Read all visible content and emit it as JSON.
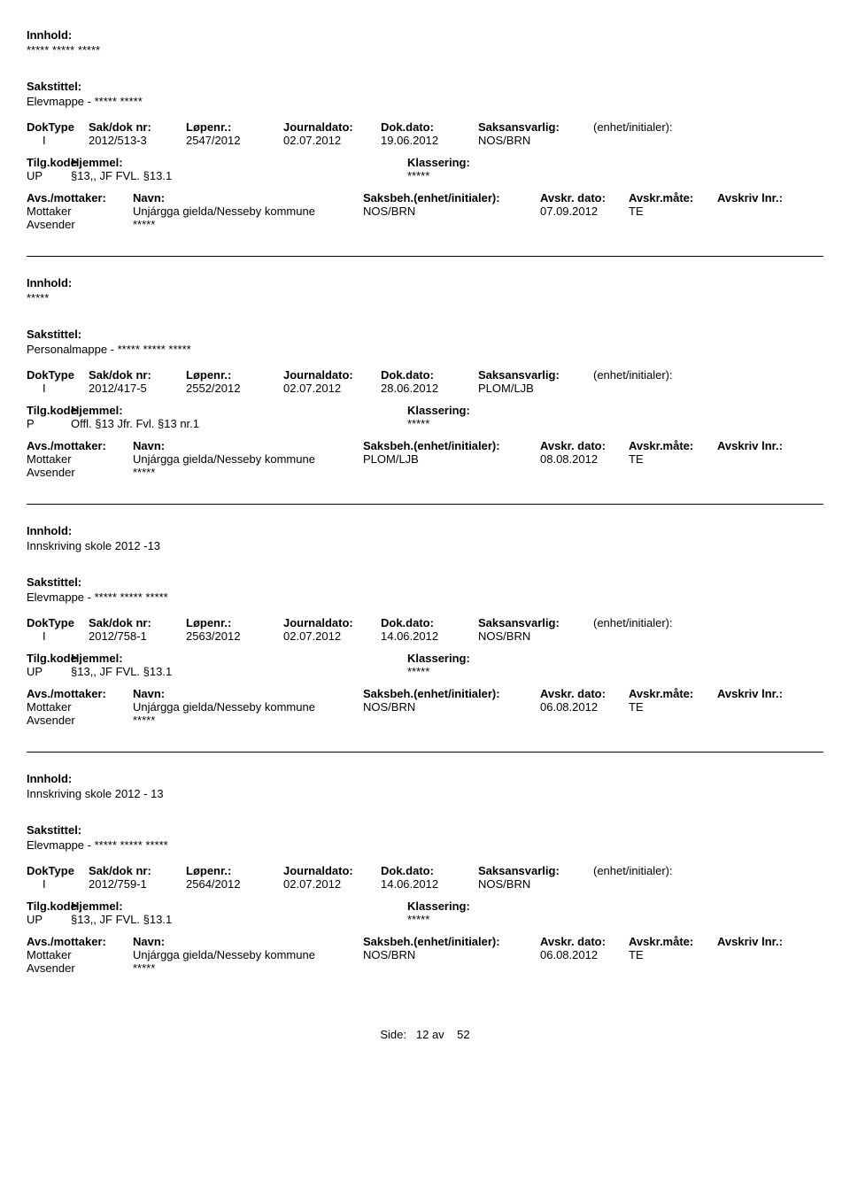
{
  "labels": {
    "innhold": "Innhold:",
    "sakstittel": "Sakstittel:",
    "doktype": "DokType",
    "saknr": "Sak/dok nr:",
    "lopenr": "Løpenr.:",
    "journaldato": "Journaldato:",
    "dokdato": "Dok.dato:",
    "saksansvarlig": "Saksansvarlig:",
    "enhet": "(enhet/initialer):",
    "tilgkode": "Tilg.kode",
    "hjemmel": "Hjemmel:",
    "klassering": "Klassering:",
    "avsmottaker": "Avs./mottaker:",
    "navn": "Navn:",
    "saksbeh": "Saksbeh.(enhet/initialer):",
    "avskrdato": "Avskr. dato:",
    "avskrmate": "Avskr.måte:",
    "avskrivlnr": "Avskriv lnr.:",
    "mottaker": "Mottaker",
    "avsender": "Avsender"
  },
  "records": [
    {
      "innhold": "***** ***** *****",
      "sakstittel": "Elevmappe - ***** *****",
      "doktype": "I",
      "saknr": "2012/513-3",
      "lopenr": "2547/2012",
      "journaldato": "02.07.2012",
      "dokdato": "19.06.2012",
      "saksansvarlig": "NOS/BRN",
      "enhet": "",
      "tilgkode": "UP",
      "hjemmel": "§13,, JF FVL. §13.1",
      "klassering": "*****",
      "parties": [
        {
          "role": "Mottaker",
          "navn": "Unjárgga gielda/Nesseby kommune",
          "saksbeh": "NOS/BRN",
          "avdato": "07.09.2012",
          "avmate": "TE",
          "avlnr": ""
        }
      ],
      "avsender_navn": "*****"
    },
    {
      "innhold": "*****",
      "sakstittel": "Personalmappe - ***** ***** *****",
      "doktype": "I",
      "saknr": "2012/417-5",
      "lopenr": "2552/2012",
      "journaldato": "02.07.2012",
      "dokdato": "28.06.2012",
      "saksansvarlig": "PLOM/LJB",
      "enhet": "",
      "tilgkode": "P",
      "hjemmel": "Offl. §13 Jfr. Fvl. §13 nr.1",
      "klassering": "*****",
      "parties": [
        {
          "role": "Mottaker",
          "navn": "Unjárgga gielda/Nesseby kommune",
          "saksbeh": "PLOM/LJB",
          "avdato": "08.08.2012",
          "avmate": "TE",
          "avlnr": ""
        }
      ],
      "avsender_navn": "*****"
    },
    {
      "innhold": "Innskriving skole 2012 -13",
      "sakstittel": "Elevmappe - ***** ***** *****",
      "doktype": "I",
      "saknr": "2012/758-1",
      "lopenr": "2563/2012",
      "journaldato": "02.07.2012",
      "dokdato": "14.06.2012",
      "saksansvarlig": "NOS/BRN",
      "enhet": "",
      "tilgkode": "UP",
      "hjemmel": "§13,, JF FVL. §13.1",
      "klassering": "*****",
      "parties": [
        {
          "role": "Mottaker",
          "navn": "Unjárgga gielda/Nesseby kommune",
          "saksbeh": "NOS/BRN",
          "avdato": "06.08.2012",
          "avmate": "TE",
          "avlnr": ""
        }
      ],
      "avsender_navn": "*****"
    },
    {
      "innhold": "Innskriving skole 2012 - 13",
      "sakstittel": "Elevmappe - ***** ***** *****",
      "doktype": "I",
      "saknr": "2012/759-1",
      "lopenr": "2564/2012",
      "journaldato": "02.07.2012",
      "dokdato": "14.06.2012",
      "saksansvarlig": "NOS/BRN",
      "enhet": "",
      "tilgkode": "UP",
      "hjemmel": "§13,, JF FVL. §13.1",
      "klassering": "*****",
      "parties": [
        {
          "role": "Mottaker",
          "navn": "Unjárgga gielda/Nesseby kommune",
          "saksbeh": "NOS/BRN",
          "avdato": "06.08.2012",
          "avmate": "TE",
          "avlnr": ""
        }
      ],
      "avsender_navn": "*****"
    }
  ],
  "footer": {
    "side_label": "Side:",
    "page": "12",
    "av": "av",
    "total": "52"
  }
}
